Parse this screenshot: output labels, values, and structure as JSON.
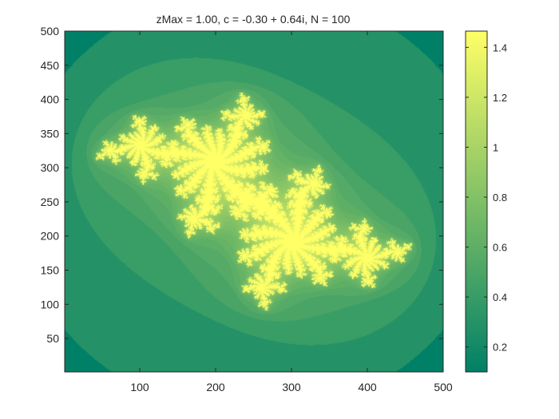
{
  "chart_data": {
    "type": "heatmap",
    "title": "zMax = 1.00, c = -0.30 + 0.64i, N = 100",
    "xlabel": "",
    "ylabel": "",
    "x_ticks": [
      100,
      200,
      300,
      400,
      500
    ],
    "y_ticks": [
      50,
      100,
      150,
      200,
      250,
      300,
      350,
      400,
      450,
      500
    ],
    "xlim": [
      1,
      500
    ],
    "ylim": [
      1,
      500
    ],
    "y_direction": "normal",
    "c": {
      "re": -0.3,
      "im": 0.64
    },
    "zmax": 1.0,
    "max_iterations": 100,
    "colormap": "summer",
    "colormap_colors": [
      "#008066",
      "#ffff66"
    ],
    "colorbar": {
      "placement": "right",
      "ticks": [
        0.2,
        0.4,
        0.6,
        0.8,
        1,
        1.2,
        1.4
      ],
      "tick_labels": [
        "0.2",
        "0.4",
        "0.6",
        "0.8",
        "1",
        "1.2",
        "1.4"
      ],
      "clim": [
        0.1,
        1.465
      ]
    },
    "grid": false
  }
}
